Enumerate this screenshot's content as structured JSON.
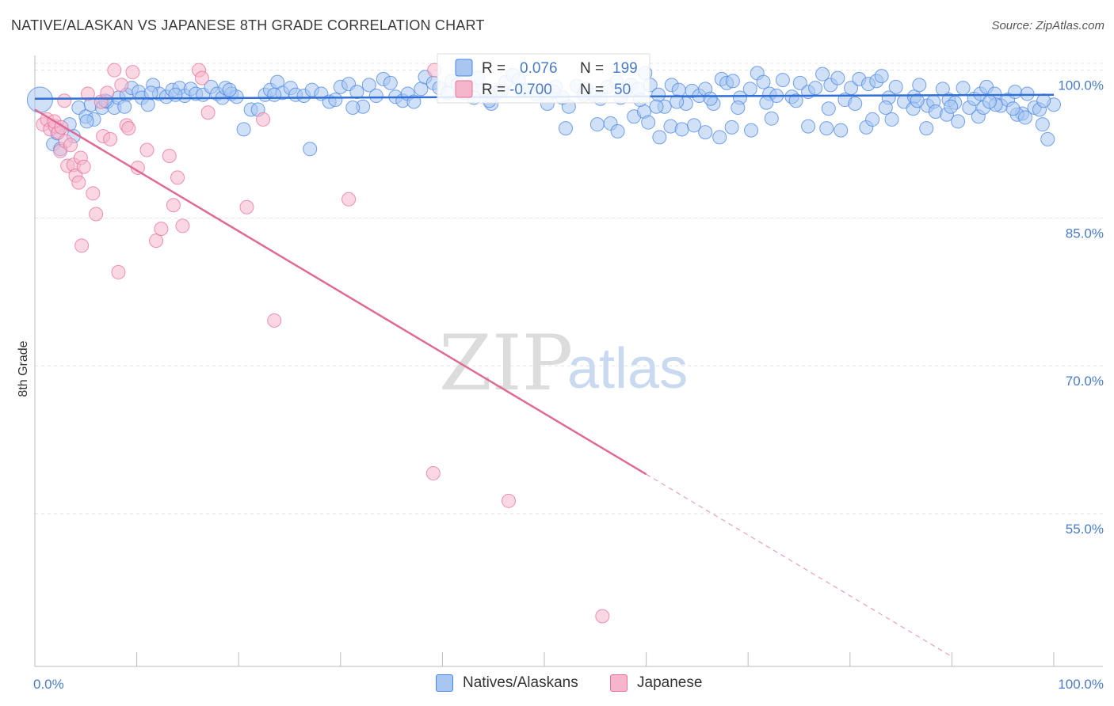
{
  "title": "NATIVE/ALASKAN VS JAPANESE 8TH GRADE CORRELATION CHART",
  "source": "Source: ZipAtlas.com",
  "colors": {
    "blue": "#4a86e8",
    "blue_fill": "#a8c6f0",
    "pink": "#e8709a",
    "pink_fill": "#f5b6cc",
    "tick_text": "#4a7bc8"
  },
  "watermark": {
    "zip": "ZIP",
    "atlas": "atlas"
  },
  "legend": {
    "rows": [
      {
        "r_label": "R =",
        "r_value": "0.076",
        "n_label": "N =",
        "n_value": "199"
      },
      {
        "r_label": "R =",
        "r_value": "-0.700",
        "n_label": "N =",
        "n_value": "50"
      }
    ]
  },
  "bottom_legend": [
    "Natives/Alaskans",
    "Japanese"
  ],
  "chart_data": {
    "type": "scatter",
    "title": "NATIVE/ALASKAN VS JAPANESE 8TH GRADE CORRELATION CHART",
    "ylabel": "8th Grade",
    "xlabel": "",
    "xlim": [
      0,
      100
    ],
    "ylim": [
      39.5,
      101.5
    ],
    "x_tick_labels": [
      "0.0%",
      "100.0%"
    ],
    "y_ticks": [
      55,
      70,
      85,
      100
    ],
    "y_tick_labels": [
      "55.0%",
      "70.0%",
      "85.0%",
      "100.0%"
    ],
    "grid": true,
    "series": [
      {
        "name": "Natives/Alaskans",
        "color": "#4a86e8",
        "trend": {
          "x": [
            0,
            100
          ],
          "y": [
            97.1,
            97.5
          ]
        },
        "points": [
          [
            0.5,
            97
          ],
          [
            1.8,
            92.5
          ],
          [
            2.5,
            92
          ],
          [
            3.4,
            94.5
          ],
          [
            3.8,
            93.3
          ],
          [
            4.3,
            96.2
          ],
          [
            5,
            95.3
          ],
          [
            5.5,
            96.5
          ],
          [
            5.8,
            95
          ],
          [
            6.6,
            96.2
          ],
          [
            7.1,
            96.8
          ],
          [
            7.8,
            96.2
          ],
          [
            8.2,
            97.2
          ],
          [
            9.0,
            97.5
          ],
          [
            9.5,
            98.2
          ],
          [
            10.2,
            97.8
          ],
          [
            10.5,
            97.2
          ],
          [
            11.1,
            96.5
          ],
          [
            11.6,
            98.5
          ],
          [
            12.2,
            97.6
          ],
          [
            12.9,
            97.3
          ],
          [
            13.5,
            98
          ],
          [
            14.2,
            98.2
          ],
          [
            14.7,
            97.4
          ],
          [
            15.3,
            98.1
          ],
          [
            15.8,
            97.6
          ],
          [
            16.5,
            97.5
          ],
          [
            17.3,
            98.3
          ],
          [
            17.9,
            97.6
          ],
          [
            18.4,
            97.2
          ],
          [
            18.7,
            98.2
          ],
          [
            19.3,
            97.6
          ],
          [
            19.8,
            97.3
          ],
          [
            20.5,
            94
          ],
          [
            21.2,
            96
          ],
          [
            21.9,
            96
          ],
          [
            22.6,
            97.5
          ],
          [
            23.1,
            98
          ],
          [
            23.8,
            98.8
          ],
          [
            24.3,
            97.7
          ],
          [
            25.1,
            98.2
          ],
          [
            25.6,
            97.5
          ],
          [
            26.4,
            97.4
          ],
          [
            27,
            92
          ],
          [
            27.2,
            98
          ],
          [
            28.1,
            97.6
          ],
          [
            28.9,
            96.8
          ],
          [
            29.5,
            97
          ],
          [
            30,
            98.3
          ],
          [
            30.8,
            98.6
          ],
          [
            31.6,
            97.8
          ],
          [
            32.2,
            96.3
          ],
          [
            32.8,
            98.5
          ],
          [
            33.5,
            97.4
          ],
          [
            34.2,
            99.1
          ],
          [
            34.9,
            98.7
          ],
          [
            35.4,
            97.3
          ],
          [
            36.1,
            96.9
          ],
          [
            36.6,
            97.6
          ],
          [
            37.2,
            96.8
          ],
          [
            37.9,
            98.1
          ],
          [
            38.3,
            99.3
          ],
          [
            39.1,
            98.7
          ],
          [
            39.7,
            98.2
          ],
          [
            40.5,
            97.7
          ],
          [
            40.9,
            98.9
          ],
          [
            41.5,
            98.6
          ],
          [
            42.2,
            97.7
          ],
          [
            42.7,
            98.4
          ],
          [
            43.5,
            99.2
          ],
          [
            44.1,
            98
          ],
          [
            44.8,
            96.6
          ],
          [
            45.3,
            97.7
          ],
          [
            45.8,
            97.9
          ],
          [
            46.2,
            98.8
          ],
          [
            46.9,
            99.5
          ],
          [
            47.5,
            99
          ],
          [
            47.8,
            98
          ],
          [
            48.4,
            98
          ],
          [
            49.2,
            97.6
          ],
          [
            50.3,
            96.6
          ],
          [
            51.1,
            98.3
          ],
          [
            51.8,
            97.2
          ],
          [
            52.4,
            96.3
          ],
          [
            53.2,
            98.4
          ],
          [
            54.1,
            98.1
          ],
          [
            54.8,
            97.5
          ],
          [
            55.5,
            97.1
          ],
          [
            56.2,
            98.3
          ],
          [
            57.1,
            98.8
          ],
          [
            57.9,
            97.8
          ],
          [
            58.5,
            98.5
          ],
          [
            59.2,
            98.1
          ],
          [
            59.9,
            99.7
          ],
          [
            60.4,
            98.5
          ],
          [
            61.2,
            97.5
          ],
          [
            61.8,
            96.3
          ],
          [
            62.5,
            98.5
          ],
          [
            63.2,
            98
          ],
          [
            63.9,
            96.6
          ],
          [
            64.5,
            97.9
          ],
          [
            65.2,
            97.4
          ],
          [
            65.8,
            98.1
          ],
          [
            66.6,
            96.6
          ],
          [
            67.4,
            99.1
          ],
          [
            67.9,
            98.7
          ],
          [
            68.5,
            98.9
          ],
          [
            69.2,
            97.2
          ],
          [
            70.2,
            98.1
          ],
          [
            70.9,
            99.7
          ],
          [
            71.5,
            98.8
          ],
          [
            72.1,
            97.6
          ],
          [
            72.8,
            97.4
          ],
          [
            73.4,
            99
          ],
          [
            74.3,
            97.3
          ],
          [
            75.1,
            98.7
          ],
          [
            75.9,
            97.8
          ],
          [
            76.6,
            98.2
          ],
          [
            77.3,
            99.6
          ],
          [
            78.1,
            98.5
          ],
          [
            78.8,
            99.2
          ],
          [
            79.5,
            97
          ],
          [
            80.1,
            98.2
          ],
          [
            80.9,
            99.1
          ],
          [
            81.8,
            98.6
          ],
          [
            82.6,
            98.9
          ],
          [
            83.1,
            99.4
          ],
          [
            83.8,
            97.2
          ],
          [
            84.5,
            98.3
          ],
          [
            85.3,
            96.8
          ],
          [
            86.3,
            97.3
          ],
          [
            86.8,
            98.5
          ],
          [
            87.6,
            96.4
          ],
          [
            88.2,
            96.8
          ],
          [
            89.1,
            98.1
          ],
          [
            89.7,
            97
          ],
          [
            90.3,
            96.7
          ],
          [
            91.1,
            98.2
          ],
          [
            91.7,
            96.2
          ],
          [
            92.2,
            97.1
          ],
          [
            92.8,
            97.6
          ],
          [
            93.4,
            98.3
          ],
          [
            94.2,
            97.6
          ],
          [
            94.8,
            96.4
          ],
          [
            95.5,
            97
          ],
          [
            96.2,
            97.8
          ],
          [
            96.9,
            95.6
          ],
          [
            97.4,
            97.6
          ],
          [
            98.1,
            96.2
          ],
          [
            98.9,
            94.5
          ],
          [
            99.4,
            93
          ],
          [
            100,
            96.5
          ],
          [
            55.2,
            94.5
          ],
          [
            56.5,
            94.6
          ],
          [
            57.2,
            93.8
          ],
          [
            58.8,
            95.3
          ],
          [
            59.8,
            95.8
          ],
          [
            60.2,
            94.7
          ],
          [
            61.3,
            93.2
          ],
          [
            62.4,
            94.3
          ],
          [
            63.5,
            94
          ],
          [
            64.7,
            94.4
          ],
          [
            65.8,
            93.7
          ],
          [
            67.2,
            93.2
          ],
          [
            68.4,
            94.2
          ],
          [
            70.3,
            93.9
          ],
          [
            72.3,
            95.1
          ],
          [
            75.9,
            94.3
          ],
          [
            77.7,
            94.1
          ],
          [
            79.1,
            93.9
          ],
          [
            81.6,
            94.2
          ],
          [
            82.2,
            95
          ],
          [
            84.1,
            95
          ],
          [
            86.2,
            96.1
          ],
          [
            87.5,
            94.1
          ],
          [
            88.4,
            95.8
          ],
          [
            89.5,
            95.5
          ],
          [
            90.6,
            94.8
          ],
          [
            92.6,
            95.3
          ],
          [
            93.1,
            96.2
          ],
          [
            94.3,
            96.5
          ],
          [
            96.4,
            95.5
          ],
          [
            97.2,
            95.2
          ],
          [
            98.6,
            96
          ],
          [
            52.1,
            94.1
          ],
          [
            44.6,
            96.9
          ],
          [
            43.1,
            97.2
          ],
          [
            31.2,
            96.2
          ],
          [
            23.5,
            97.5
          ],
          [
            19.1,
            98
          ],
          [
            13.8,
            97.5
          ],
          [
            11.4,
            97.7
          ],
          [
            8.8,
            96.3
          ],
          [
            6.9,
            96.9
          ],
          [
            5.1,
            94.8
          ],
          [
            2.2,
            93.6
          ],
          [
            59.4,
            97
          ],
          [
            61,
            96.3
          ],
          [
            50.9,
            97.8
          ],
          [
            53.9,
            97.5
          ],
          [
            57.5,
            97.2
          ],
          [
            63,
            96.8
          ],
          [
            66.3,
            97.1
          ],
          [
            69,
            96.2
          ],
          [
            71.8,
            96.7
          ],
          [
            74.7,
            96.9
          ],
          [
            77.9,
            96.1
          ],
          [
            80.5,
            96.6
          ],
          [
            83.5,
            96.2
          ],
          [
            86.6,
            96.9
          ],
          [
            89.9,
            96.3
          ],
          [
            93.7,
            96.8
          ],
          [
            96,
            96.1
          ],
          [
            99,
            96.9
          ]
        ]
      },
      {
        "name": "Japanese",
        "color": "#e8709a",
        "trend": {
          "x": [
            0,
            60
          ],
          "y": [
            96.0,
            59.0
          ]
        },
        "trend_dashed": {
          "x": [
            60,
            90
          ],
          "y": [
            59.0,
            40.5
          ]
        },
        "points": [
          [
            0.8,
            94.5
          ],
          [
            1.2,
            95
          ],
          [
            1.5,
            94
          ],
          [
            2,
            94.3
          ],
          [
            2.3,
            93.7
          ],
          [
            2.5,
            91.8
          ],
          [
            2.9,
            96.9
          ],
          [
            3,
            92.8
          ],
          [
            3.2,
            90.3
          ],
          [
            3.5,
            92.4
          ],
          [
            3.8,
            90.4
          ],
          [
            4,
            89.3
          ],
          [
            4.3,
            88.6
          ],
          [
            4.5,
            91.1
          ],
          [
            4.8,
            90.2
          ],
          [
            5.2,
            97.6
          ],
          [
            5.7,
            87.5
          ],
          [
            6,
            85.4
          ],
          [
            6.5,
            96.8
          ],
          [
            6.7,
            93.3
          ],
          [
            7.1,
            97.7
          ],
          [
            7.4,
            93
          ],
          [
            7.8,
            100
          ],
          [
            8.2,
            79.5
          ],
          [
            8.5,
            98.5
          ],
          [
            9.0,
            94.4
          ],
          [
            9.2,
            94.1
          ],
          [
            9.6,
            99.8
          ],
          [
            10.1,
            90.1
          ],
          [
            11.0,
            91.9
          ],
          [
            11.9,
            82.7
          ],
          [
            12.4,
            83.9
          ],
          [
            13.2,
            91.3
          ],
          [
            13.6,
            86.3
          ],
          [
            14.0,
            89.1
          ],
          [
            14.5,
            84.2
          ],
          [
            16.1,
            100
          ],
          [
            16.4,
            99.2
          ],
          [
            17.0,
            95.7
          ],
          [
            20.8,
            86.1
          ],
          [
            22.4,
            95
          ],
          [
            23.5,
            74.6
          ],
          [
            30.8,
            86.9
          ],
          [
            39.2,
            100
          ],
          [
            39.1,
            59.1
          ],
          [
            46.5,
            56.3
          ],
          [
            55.7,
            44.6
          ],
          [
            4.6,
            82.2
          ],
          [
            1.9,
            94.8
          ],
          [
            2.6,
            94.2
          ]
        ]
      }
    ]
  }
}
